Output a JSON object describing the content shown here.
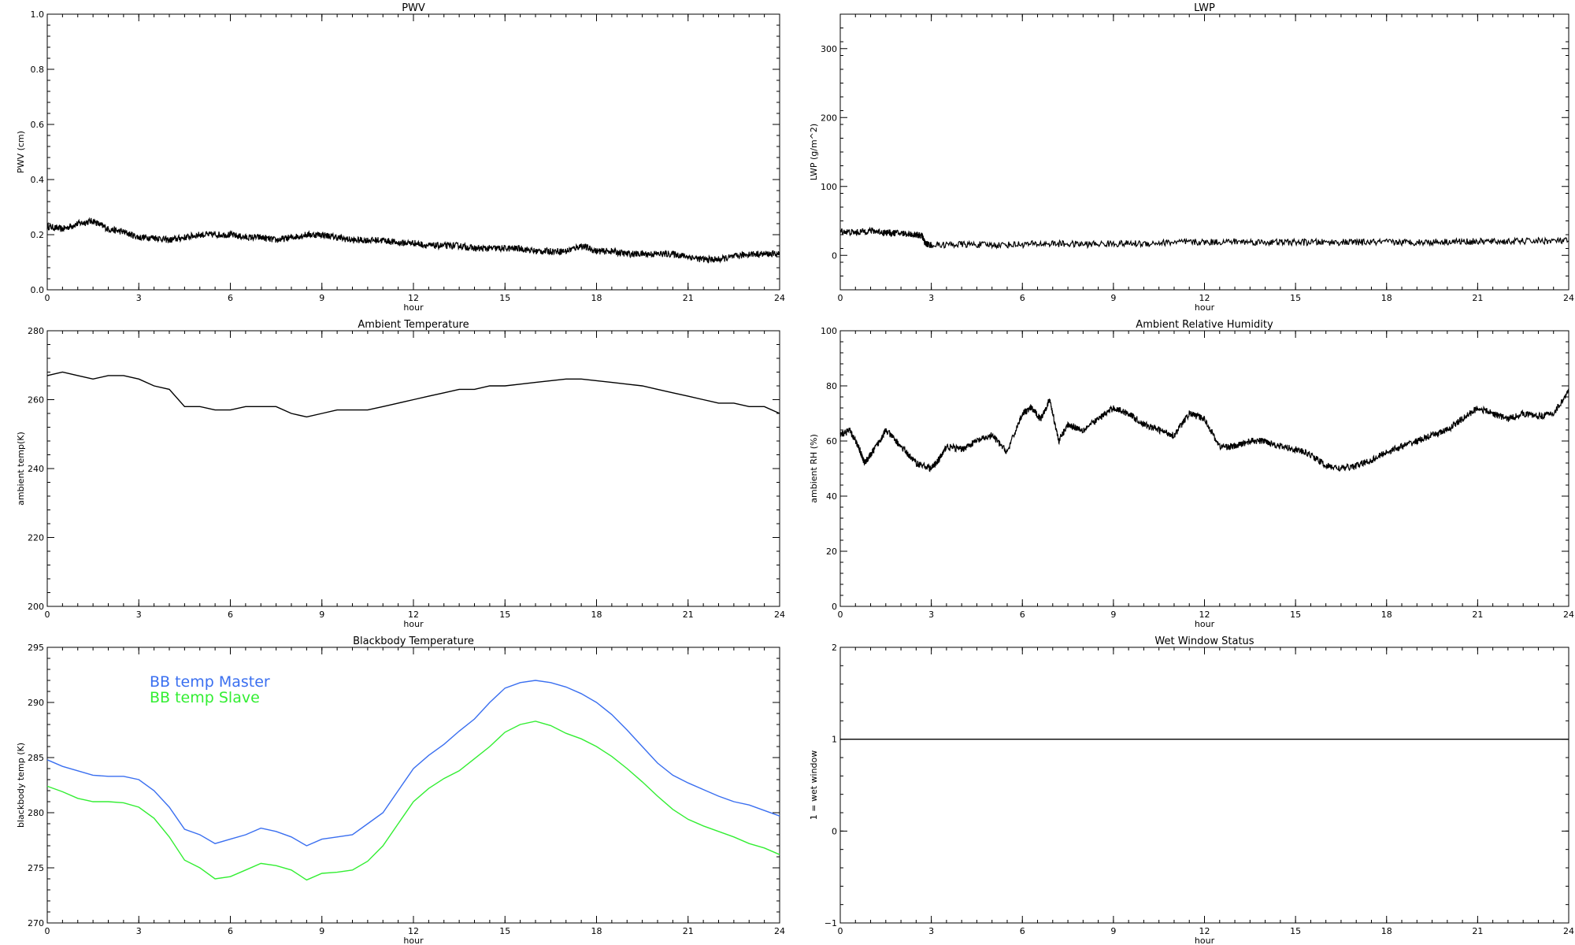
{
  "chart_data": [
    {
      "id": "pwv",
      "type": "line",
      "title": "PWV",
      "xlabel": "hour",
      "ylabel": "PWV (cm)",
      "xlim": [
        0,
        24
      ],
      "ylim": [
        0.0,
        1.0
      ],
      "xticks": [
        0,
        3,
        6,
        9,
        12,
        15,
        18,
        21,
        24
      ],
      "yticks": [
        "0.0",
        "0.2",
        "0.4",
        "0.6",
        "0.8",
        "1.0"
      ],
      "noisy": true,
      "series": [
        {
          "color": "#000000",
          "x": [
            0,
            0.5,
            1,
            1.5,
            2,
            2.5,
            3,
            3.5,
            4,
            4.5,
            5,
            5.5,
            6,
            6.5,
            7,
            7.5,
            8,
            8.5,
            9,
            9.5,
            10,
            10.5,
            11,
            11.5,
            12,
            12.5,
            13,
            13.5,
            14,
            14.5,
            15,
            15.5,
            16,
            16.5,
            17,
            17.5,
            18,
            18.5,
            19,
            19.5,
            20,
            20.5,
            21,
            21.5,
            22,
            22.5,
            23,
            23.5,
            24
          ],
          "y": [
            0.23,
            0.22,
            0.24,
            0.25,
            0.22,
            0.21,
            0.19,
            0.19,
            0.18,
            0.19,
            0.2,
            0.2,
            0.2,
            0.19,
            0.19,
            0.18,
            0.19,
            0.2,
            0.2,
            0.19,
            0.18,
            0.18,
            0.18,
            0.17,
            0.17,
            0.16,
            0.16,
            0.16,
            0.15,
            0.15,
            0.15,
            0.15,
            0.14,
            0.14,
            0.14,
            0.16,
            0.14,
            0.14,
            0.13,
            0.13,
            0.13,
            0.13,
            0.12,
            0.11,
            0.11,
            0.12,
            0.13,
            0.13,
            0.13
          ]
        }
      ]
    },
    {
      "id": "lwp",
      "type": "line",
      "title": "LWP",
      "xlabel": "hour",
      "ylabel": "LWP (g/m^2)",
      "xlim": [
        0,
        24
      ],
      "ylim": [
        -50,
        350
      ],
      "xticks": [
        0,
        3,
        6,
        9,
        12,
        15,
        18,
        21,
        24
      ],
      "yticks": [
        "0",
        "100",
        "200",
        "300"
      ],
      "noisy": true,
      "series": [
        {
          "color": "#000000",
          "x": [
            0,
            0.5,
            1,
            1.5,
            2,
            2.5,
            2.7,
            2.8,
            3,
            4,
            5,
            6,
            7,
            8,
            9,
            10,
            11,
            12,
            13,
            14,
            15,
            16,
            17,
            18,
            19,
            20,
            21,
            22,
            23,
            24
          ],
          "y": [
            35,
            33,
            36,
            33,
            32,
            30,
            28,
            17,
            15,
            16,
            15,
            16,
            17,
            16,
            17,
            17,
            19,
            19,
            20,
            19,
            19,
            19,
            19,
            19,
            19,
            20,
            20,
            20,
            21,
            21
          ]
        }
      ]
    },
    {
      "id": "ambtemp",
      "type": "line",
      "title": "Ambient Temperature",
      "xlabel": "hour",
      "ylabel": "ambient temp(K)",
      "xlim": [
        0,
        24
      ],
      "ylim": [
        200,
        280
      ],
      "xticks": [
        0,
        3,
        6,
        9,
        12,
        15,
        18,
        21,
        24
      ],
      "yticks": [
        "200",
        "220",
        "240",
        "260",
        "280"
      ],
      "noisy": false,
      "series": [
        {
          "color": "#000000",
          "x": [
            0,
            0.5,
            1,
            1.5,
            2,
            2.5,
            3,
            3.5,
            4,
            4.5,
            5,
            5.5,
            6,
            6.5,
            7,
            7.5,
            8,
            8.5,
            9,
            9.5,
            10,
            10.5,
            11,
            11.5,
            12,
            12.5,
            13,
            13.5,
            14,
            14.5,
            15,
            15.5,
            16,
            16.5,
            17,
            17.5,
            18,
            18.5,
            19,
            19.5,
            20,
            20.5,
            21,
            21.5,
            22,
            22.5,
            23,
            23.5,
            24
          ],
          "y": [
            267,
            268,
            267,
            266,
            267,
            267,
            266,
            264,
            263,
            258,
            258,
            257,
            257,
            258,
            258,
            258,
            256,
            255,
            256,
            257,
            257,
            257,
            258,
            259,
            260,
            261,
            262,
            263,
            263,
            264,
            264,
            264.5,
            265,
            265.5,
            266,
            266,
            265.5,
            265,
            264.5,
            264,
            263,
            262,
            261,
            260,
            259,
            259,
            258,
            258,
            256
          ]
        }
      ]
    },
    {
      "id": "ambrh",
      "type": "line",
      "title": "Ambient Relative Humidity",
      "xlabel": "hour",
      "ylabel": "ambient RH (%)",
      "xlim": [
        0,
        24
      ],
      "ylim": [
        0,
        100
      ],
      "xticks": [
        0,
        3,
        6,
        9,
        12,
        15,
        18,
        21,
        24
      ],
      "yticks": [
        "0",
        "20",
        "40",
        "60",
        "80",
        "100"
      ],
      "noisy": true,
      "series": [
        {
          "color": "#000000",
          "x": [
            0,
            0.3,
            0.6,
            0.8,
            1,
            1.3,
            1.5,
            2,
            2.5,
            3,
            3.3,
            3.5,
            4,
            4.5,
            5,
            5.5,
            6,
            6.3,
            6.6,
            6.9,
            7.2,
            7.5,
            8,
            8.5,
            9,
            9.5,
            10,
            10.5,
            11,
            11.5,
            12,
            12.5,
            13,
            13.5,
            14,
            14.5,
            15,
            15.5,
            16,
            16.5,
            17,
            17.5,
            18,
            18.5,
            19,
            19.5,
            20,
            20.5,
            21,
            21.5,
            22,
            22.5,
            23,
            23.5,
            24
          ],
          "y": [
            62,
            64,
            58,
            52,
            55,
            60,
            64,
            58,
            52,
            50,
            54,
            58,
            57,
            60,
            62,
            56,
            70,
            72,
            68,
            75,
            60,
            66,
            64,
            68,
            72,
            70,
            66,
            64,
            62,
            70,
            68,
            58,
            58,
            60,
            60,
            58,
            57,
            55,
            51,
            50,
            51,
            53,
            56,
            58,
            60,
            62,
            64,
            68,
            72,
            70,
            68,
            70,
            69,
            70,
            78
          ]
        }
      ]
    },
    {
      "id": "bbtemp",
      "type": "line",
      "title": "Blackbody Temperature",
      "xlabel": "hour",
      "ylabel": "blackbody temp (K)",
      "xlim": [
        0,
        24
      ],
      "ylim": [
        270,
        295
      ],
      "xticks": [
        0,
        3,
        6,
        9,
        12,
        15,
        18,
        21,
        24
      ],
      "yticks": [
        "270",
        "275",
        "280",
        "285",
        "290",
        "295"
      ],
      "noisy": false,
      "legend": [
        "BB temp Master",
        "BB temp Slave"
      ],
      "legend_placement": "top-left",
      "series": [
        {
          "name": "BB temp Master",
          "color": "#3a6ff0",
          "x": [
            0,
            0.5,
            1,
            1.5,
            2,
            2.5,
            3,
            3.5,
            4,
            4.5,
            5,
            5.5,
            6,
            6.5,
            7,
            7.5,
            8,
            8.5,
            9,
            9.5,
            10,
            10.5,
            11,
            11.5,
            12,
            12.5,
            13,
            13.5,
            14,
            14.5,
            15,
            15.5,
            16,
            16.5,
            17,
            17.5,
            18,
            18.5,
            19,
            19.5,
            20,
            20.5,
            21,
            21.5,
            22,
            22.5,
            23,
            23.5,
            24
          ],
          "y": [
            284.8,
            284.2,
            283.8,
            283.4,
            283.3,
            283.3,
            283.0,
            282.0,
            280.5,
            278.5,
            278.0,
            277.2,
            277.6,
            278.0,
            278.6,
            278.3,
            277.8,
            277.0,
            277.6,
            277.8,
            278.0,
            279.0,
            280.0,
            282.0,
            284.0,
            285.2,
            286.2,
            287.4,
            288.5,
            290.0,
            291.3,
            291.8,
            292.0,
            291.8,
            291.4,
            290.8,
            290.0,
            288.9,
            287.5,
            286.0,
            284.5,
            283.4,
            282.7,
            282.1,
            281.5,
            281.0,
            280.7,
            280.2,
            279.7
          ]
        },
        {
          "name": "BB temp Slave",
          "color": "#33ee33",
          "x": [
            0,
            0.5,
            1,
            1.5,
            2,
            2.5,
            3,
            3.5,
            4,
            4.5,
            5,
            5.5,
            6,
            6.5,
            7,
            7.5,
            8,
            8.5,
            9,
            9.5,
            10,
            10.5,
            11,
            11.5,
            12,
            12.5,
            13,
            13.5,
            14,
            14.5,
            15,
            15.5,
            16,
            16.5,
            17,
            17.5,
            18,
            18.5,
            19,
            19.5,
            20,
            20.5,
            21,
            21.5,
            22,
            22.5,
            23,
            23.5,
            24
          ],
          "y": [
            282.4,
            281.9,
            281.3,
            281.0,
            281.0,
            280.9,
            280.5,
            279.5,
            277.8,
            275.7,
            275.0,
            274.0,
            274.2,
            274.8,
            275.4,
            275.2,
            274.8,
            273.9,
            274.5,
            274.6,
            274.8,
            275.6,
            277.0,
            279.0,
            281.0,
            282.2,
            283.1,
            283.8,
            284.9,
            286.0,
            287.3,
            288.0,
            288.3,
            287.9,
            287.2,
            286.7,
            286.0,
            285.1,
            284.0,
            282.8,
            281.5,
            280.3,
            279.4,
            278.8,
            278.3,
            277.8,
            277.2,
            276.8,
            276.2
          ]
        }
      ]
    },
    {
      "id": "wetwin",
      "type": "line",
      "title": "Wet Window Status",
      "xlabel": "hour",
      "ylabel": "1 = wet window",
      "xlim": [
        0,
        24
      ],
      "ylim": [
        -1,
        2
      ],
      "xticks": [
        0,
        3,
        6,
        9,
        12,
        15,
        18,
        21,
        24
      ],
      "yticks": [
        "−1",
        "0",
        "1",
        "2"
      ],
      "noisy": false,
      "series": [
        {
          "color": "#000000",
          "x": [
            0,
            24
          ],
          "y": [
            1,
            1
          ]
        }
      ]
    }
  ]
}
